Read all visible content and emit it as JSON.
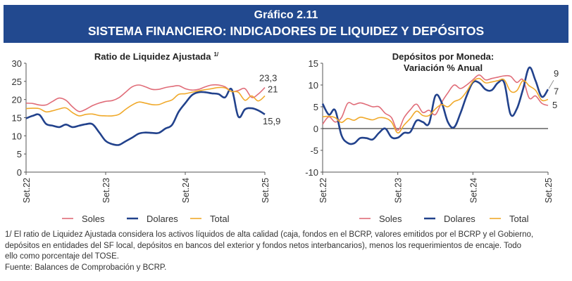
{
  "header": {
    "figure_number": "Gráfico 2.11",
    "title": "SISTEMA FINANCIERO: INDICADORES DE LIQUIDEZ Y DEPÓSITOS"
  },
  "colors": {
    "soles": "#e06c78",
    "dolares": "#22428c",
    "total": "#f0a92a",
    "banner": "#22498f"
  },
  "chart_data": [
    {
      "type": "line",
      "title": "Ratio de Liquidez Ajustada",
      "title_footnote": "1/",
      "xlabel": "",
      "ylabel": "",
      "ylim": [
        0,
        30
      ],
      "yticks": [
        "0",
        "5",
        "10",
        "15",
        "20",
        "25",
        "30"
      ],
      "xticks": [
        "Set.22",
        "Set.23",
        "Set.24",
        "Set.25"
      ],
      "grid": false,
      "legend": "bottom",
      "series": [
        {
          "name": "Soles",
          "end_label": "23,3",
          "values": [
            19.0,
            18.9,
            18.5,
            18.5,
            19.5,
            20.4,
            19.8,
            18.0,
            16.7,
            17.3,
            18.3,
            19.0,
            19.5,
            19.7,
            20.5,
            22.0,
            23.5,
            24.0,
            23.5,
            22.8,
            22.8,
            23.3,
            23.6,
            23.8,
            23.0,
            22.6,
            22.8,
            23.5,
            24.0,
            24.0,
            23.5,
            22.2,
            22.5,
            23.0,
            20.6,
            21.5,
            23.3
          ]
        },
        {
          "name": "Dolares",
          "end_label": "15,9",
          "values": [
            14.8,
            15.5,
            15.8,
            13.3,
            12.8,
            12.4,
            13.1,
            12.4,
            12.8,
            13.2,
            13.2,
            11.0,
            8.6,
            7.7,
            7.5,
            8.5,
            9.5,
            10.6,
            10.9,
            10.8,
            10.8,
            12.0,
            13.0,
            16.6,
            19.0,
            21.2,
            22.0,
            22.0,
            21.7,
            21.5,
            20.6,
            22.8,
            15.3,
            17.3,
            17.6,
            17.0,
            15.9
          ]
        },
        {
          "name": "Total",
          "end_label": "21",
          "values": [
            17.5,
            17.6,
            17.5,
            16.6,
            16.9,
            17.4,
            17.7,
            16.4,
            15.5,
            15.9,
            16.0,
            15.6,
            15.5,
            15.5,
            15.9,
            17.3,
            18.5,
            19.3,
            19.0,
            18.6,
            18.6,
            19.3,
            19.9,
            21.4,
            21.6,
            22.0,
            22.4,
            22.7,
            23.0,
            23.3,
            23.2,
            22.2,
            22.0,
            19.8,
            21.0,
            19.6,
            21.0
          ]
        }
      ]
    },
    {
      "type": "line",
      "title": "Depósitos por Moneda:",
      "subtitle": "Variación % Anual",
      "xlabel": "",
      "ylabel": "",
      "ylim": [
        -10,
        15
      ],
      "yticks": [
        "-10",
        "-5",
        "0",
        "5",
        "10",
        "15"
      ],
      "xticks": [
        "Set.22",
        "Set.23",
        "Set.24",
        "Set.25"
      ],
      "grid": false,
      "legend": "bottom",
      "series": [
        {
          "name": "Soles",
          "end_label": "5",
          "values": [
            1.0,
            2.7,
            1.5,
            2.5,
            5.8,
            5.5,
            5.9,
            5.5,
            5.0,
            5.0,
            3.5,
            2.5,
            -0.4,
            2.5,
            4.3,
            5.6,
            3.7,
            4.2,
            3.2,
            6.0,
            8.2,
            10.0,
            9.2,
            10.0,
            11.2,
            12.3,
            11.2,
            11.5,
            11.8,
            12.1,
            12.0,
            10.6,
            11.2,
            7.0,
            7.5,
            5.8,
            5.3
          ]
        },
        {
          "name": "Dolares",
          "end_label": "9",
          "values": [
            5.7,
            3.2,
            4.2,
            -1.5,
            -3.3,
            -3.4,
            -2.2,
            -2.2,
            -2.5,
            -1.0,
            0.0,
            -2.0,
            -2.1,
            -1.0,
            -0.8,
            1.8,
            1.5,
            1.2,
            7.5,
            6.0,
            1.5,
            0.3,
            3.5,
            7.5,
            10.6,
            10.5,
            9.0,
            8.8,
            10.5,
            10.5,
            3.3,
            4.5,
            9.0,
            14.0,
            11.0,
            7.3,
            9.0
          ]
        },
        {
          "name": "Total",
          "end_label": "7",
          "values": [
            2.7,
            2.8,
            2.5,
            1.4,
            2.3,
            1.9,
            2.6,
            2.3,
            2.0,
            2.5,
            2.4,
            1.5,
            -1.0,
            0.8,
            2.3,
            4.0,
            3.0,
            3.0,
            4.5,
            5.5,
            5.0,
            6.2,
            6.8,
            8.5,
            10.8,
            11.5,
            10.5,
            10.7,
            11.0,
            11.2,
            8.6,
            8.7,
            11.0,
            9.8,
            8.8,
            6.5,
            6.7
          ]
        }
      ]
    }
  ],
  "footnote": {
    "lines": [
      "1/ El ratio de Liquidez Ajustada considera los activos líquidos de alta calidad (caja, fondos en el BCRP, valores emitidos por el BCRP y el Gobierno,",
      "depósitos en entidades del SF local, depósitos en bancos del exterior y fondos netos interbancarios), menos los requerimientos de encaje. Todo",
      "ello como porcentaje del TOSE.",
      "Fuente: Balances de Comprobación y BCRP."
    ]
  }
}
